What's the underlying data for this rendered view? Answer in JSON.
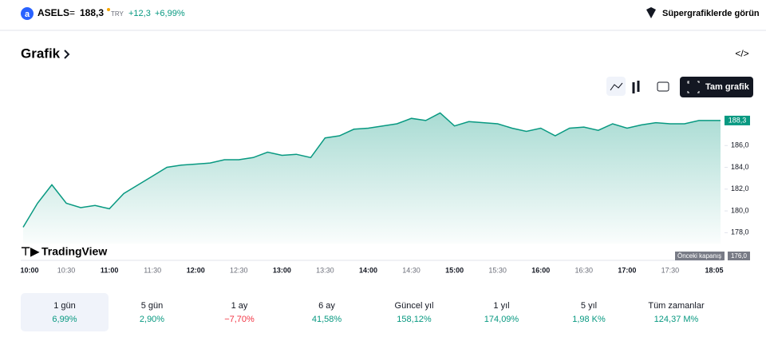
{
  "header": {
    "logo": "a",
    "symbol": "ASELS",
    "separator": "=",
    "price": "188,3",
    "currency": "TRY",
    "change": "+12,3",
    "change_pct": "+6,99%",
    "super_link": "Süpergrafiklerde görün"
  },
  "section_title": "Grafik",
  "full_chart": "Tam grafik",
  "brand": "TradingView",
  "chart_data": {
    "type": "line",
    "color": "#089981",
    "x": [
      "10:00",
      "10:10",
      "10:20",
      "10:30",
      "10:40",
      "10:50",
      "11:00",
      "11:10",
      "11:20",
      "11:30",
      "11:40",
      "11:50",
      "12:00",
      "12:10",
      "12:20",
      "12:30",
      "12:40",
      "12:50",
      "13:00",
      "13:10",
      "13:20",
      "13:30",
      "13:40",
      "13:50",
      "14:00",
      "14:10",
      "14:20",
      "14:30",
      "14:40",
      "14:50",
      "15:00",
      "15:10",
      "15:20",
      "15:30",
      "15:40",
      "15:50",
      "16:00",
      "16:10",
      "16:20",
      "16:30",
      "16:40",
      "16:50",
      "17:00",
      "17:10",
      "17:20",
      "17:30",
      "17:40",
      "17:50",
      "18:00",
      "18:05"
    ],
    "values": [
      178.5,
      180.7,
      182.4,
      180.7,
      180.3,
      180.5,
      180.2,
      181.6,
      182.4,
      183.2,
      184.0,
      184.2,
      184.3,
      184.4,
      184.7,
      184.7,
      184.9,
      185.4,
      185.1,
      185.2,
      184.9,
      186.7,
      186.9,
      187.5,
      187.6,
      187.8,
      188.0,
      188.5,
      188.3,
      189.0,
      187.8,
      188.2,
      188.1,
      188.0,
      187.6,
      187.3,
      187.6,
      186.9,
      187.6,
      187.7,
      187.4,
      188.0,
      187.6,
      187.9,
      188.1,
      188.0,
      188.0,
      188.3,
      188.3,
      188.3
    ],
    "xticks": [
      "10:00",
      "10:30",
      "11:00",
      "11:30",
      "12:00",
      "12:30",
      "13:00",
      "13:30",
      "14:00",
      "14:30",
      "15:00",
      "15:30",
      "16:00",
      "16:30",
      "17:00",
      "17:30",
      "18:05"
    ],
    "ylim": [
      177,
      190.2
    ],
    "yticks": [
      {
        "value": 178,
        "label": "178,0"
      },
      {
        "value": 180,
        "label": "180,0"
      },
      {
        "value": 182,
        "label": "182,0"
      },
      {
        "value": 184,
        "label": "184,0"
      },
      {
        "value": 186,
        "label": "186,0"
      }
    ],
    "last_label": "188,3",
    "prev_close_text": "Önceki kapanış",
    "prev_close_label": "176,0"
  },
  "periods": [
    {
      "label": "1 gün",
      "value": "6,99%",
      "color": "#089981",
      "selected": true
    },
    {
      "label": "5 gün",
      "value": "2,90%",
      "color": "#089981"
    },
    {
      "label": "1 ay",
      "value": "−7,70%",
      "color": "#f23645"
    },
    {
      "label": "6 ay",
      "value": "41,58%",
      "color": "#089981"
    },
    {
      "label": "Güncel yıl",
      "value": "158,12%",
      "color": "#089981"
    },
    {
      "label": "1 yıl",
      "value": "174,09%",
      "color": "#089981"
    },
    {
      "label": "5 yıl",
      "value": "1,98 K%",
      "color": "#089981"
    },
    {
      "label": "Tüm zamanlar",
      "value": "124,37 M%",
      "color": "#089981"
    }
  ]
}
